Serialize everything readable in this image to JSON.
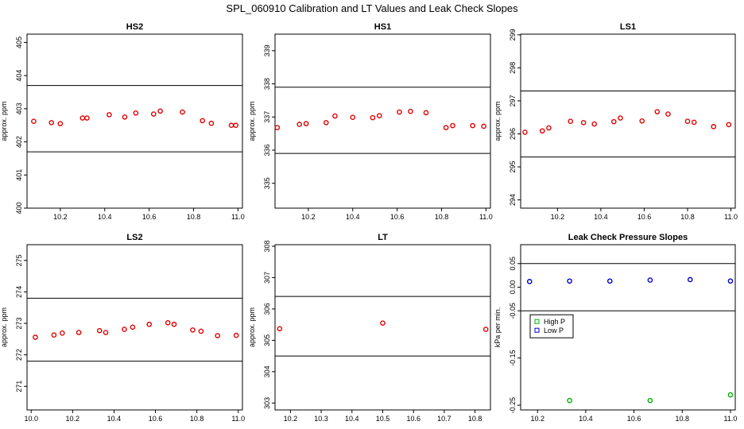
{
  "title": "SPL_060910  Calibration and LT Values and Leak Check Slopes",
  "chart_data": [
    {
      "type": "scatter",
      "title": "HS2",
      "ylabel": "approx. ppm",
      "xlim": [
        10.05,
        11.02
      ],
      "ylim": [
        400,
        405.25
      ],
      "xticks": [
        "10.2",
        "10.4",
        "10.6",
        "10.8",
        "11.0"
      ],
      "yticks": [
        "400",
        "401",
        "402",
        "403",
        "404",
        "405"
      ],
      "hlines": [
        401.7,
        403.7
      ],
      "color": "#e00000",
      "series": [
        {
          "x": [
            10.08,
            10.16,
            10.2,
            10.3,
            10.32,
            10.42,
            10.49,
            10.54,
            10.62,
            10.65,
            10.75,
            10.84,
            10.88,
            10.97,
            10.99
          ],
          "y": [
            402.62,
            402.58,
            402.55,
            402.72,
            402.72,
            402.82,
            402.75,
            402.87,
            402.84,
            402.93,
            402.9,
            402.64,
            402.56,
            402.5,
            402.5
          ]
        }
      ]
    },
    {
      "type": "scatter",
      "title": "HS1",
      "ylabel": "approx. ppm",
      "xlim": [
        10.05,
        11.02
      ],
      "ylim": [
        334.25,
        339.5
      ],
      "xticks": [
        "10.2",
        "10.4",
        "10.6",
        "10.8",
        "11.0"
      ],
      "yticks": [
        "335",
        "336",
        "337",
        "338",
        "339"
      ],
      "hlines": [
        335.9,
        337.9
      ],
      "color": "#e00000",
      "series": [
        {
          "x": [
            10.06,
            10.16,
            10.19,
            10.28,
            10.32,
            10.4,
            10.49,
            10.52,
            10.61,
            10.66,
            10.73,
            10.82,
            10.85,
            10.94,
            10.99
          ],
          "y": [
            336.68,
            336.78,
            336.8,
            336.83,
            337.03,
            336.99,
            336.98,
            337.04,
            337.15,
            337.17,
            337.13,
            336.68,
            336.74,
            336.74,
            336.72
          ]
        }
      ]
    },
    {
      "type": "scatter",
      "title": "LS1",
      "ylabel": "approx. ppm",
      "xlim": [
        10.03,
        11.02
      ],
      "ylim": [
        293.75,
        299.02
      ],
      "xticks": [
        "10.2",
        "10.4",
        "10.6",
        "10.8",
        "11.0"
      ],
      "yticks": [
        "294",
        "295",
        "296",
        "297",
        "298",
        "299"
      ],
      "hlines": [
        295.3,
        297.3
      ],
      "color": "#e00000",
      "series": [
        {
          "x": [
            10.05,
            10.13,
            10.16,
            10.26,
            10.32,
            10.37,
            10.46,
            10.49,
            10.59,
            10.66,
            10.71,
            10.8,
            10.83,
            10.92,
            10.99
          ],
          "y": [
            296.05,
            296.09,
            296.18,
            296.38,
            296.34,
            296.3,
            296.37,
            296.48,
            296.39,
            296.67,
            296.6,
            296.38,
            296.35,
            296.22,
            296.28
          ]
        }
      ]
    },
    {
      "type": "scatter",
      "title": "LS2",
      "ylabel": "approx. ppm",
      "xlim": [
        9.98,
        11.02
      ],
      "ylim": [
        270.25,
        275.5
      ],
      "xticks": [
        "10.0",
        "10.2",
        "10.4",
        "10.6",
        "10.8",
        "11.0"
      ],
      "yticks": [
        "271",
        "272",
        "273",
        "274",
        "275"
      ],
      "hlines": [
        271.8,
        273.8
      ],
      "color": "#e00000",
      "series": [
        {
          "x": [
            10.02,
            10.11,
            10.15,
            10.23,
            10.33,
            10.36,
            10.45,
            10.49,
            10.57,
            10.66,
            10.69,
            10.78,
            10.82,
            10.9,
            10.99
          ],
          "y": [
            272.56,
            272.63,
            272.69,
            272.71,
            272.77,
            272.71,
            272.81,
            272.88,
            272.97,
            273.02,
            272.97,
            272.79,
            272.75,
            272.61,
            272.62
          ]
        }
      ]
    },
    {
      "type": "scatter",
      "title": "LT",
      "ylabel": "approx. ppm",
      "xlim": [
        10.15,
        10.85
      ],
      "ylim": [
        302.78,
        308.05
      ],
      "xticks": [
        "10.2",
        "10.3",
        "10.4",
        "10.5",
        "10.6",
        "10.7",
        "10.8"
      ],
      "yticks": [
        "303",
        "304",
        "305",
        "306",
        "307",
        "308"
      ],
      "hlines": [
        304.5,
        306.4
      ],
      "color": "#e00000",
      "series": [
        {
          "x": [
            10.165,
            10.5,
            10.835
          ],
          "y": [
            305.37,
            305.55,
            305.35
          ]
        }
      ]
    },
    {
      "type": "scatter",
      "title": "Leak Check Pressure Slopes",
      "ylabel": "kPa per min.",
      "xlim": [
        10.13,
        11.02
      ],
      "ylim": [
        -0.26,
        0.09
      ],
      "xticks": [
        "10.2",
        "10.4",
        "10.6",
        "10.8",
        "11.0"
      ],
      "yticks": [
        "-0.25",
        "-0.15",
        "-0.05",
        "0.00",
        "0.05"
      ],
      "hlines": [
        0.05,
        -0.05
      ],
      "legend": {
        "position": "left",
        "entries": [
          "High P",
          "Low P"
        ]
      },
      "series": [
        {
          "name": "High P",
          "color": "#00b000",
          "x": [
            10.333,
            10.667,
            11.0
          ],
          "y": [
            -0.24,
            -0.24,
            -0.228
          ]
        },
        {
          "name": "Low P",
          "color": "#0000cc",
          "x": [
            10.167,
            10.333,
            10.5,
            10.667,
            10.833,
            11.0
          ],
          "y": [
            0.012,
            0.013,
            0.013,
            0.015,
            0.016,
            0.013
          ]
        }
      ]
    }
  ]
}
